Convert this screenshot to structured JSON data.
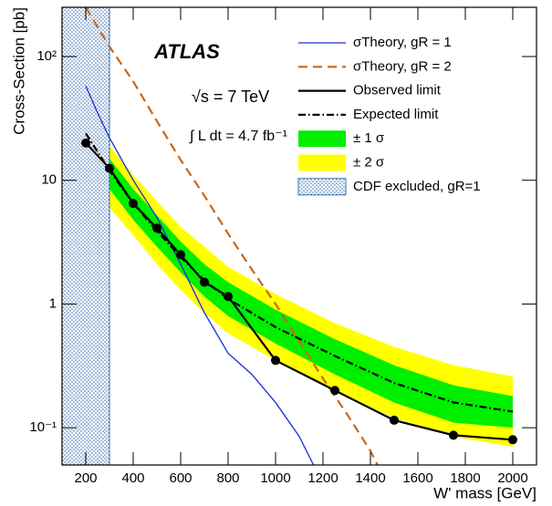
{
  "chart_data": {
    "type": "line",
    "title": "ATLAS",
    "annotations": [
      "√s = 7 TeV",
      "∫ L dt = 4.7 fb⁻¹"
    ],
    "xlabel": "W' mass [GeV]",
    "ylabel": "Cross-Section [pb]",
    "xlim": [
      100,
      2100
    ],
    "xticks": [
      200,
      400,
      600,
      800,
      1000,
      1200,
      1400,
      1600,
      1800,
      2000
    ],
    "ylog": true,
    "ylim": [
      0.05,
      250
    ],
    "yticks": [
      {
        "value": 0.1,
        "label": "10⁻¹"
      },
      {
        "value": 1,
        "label": "1"
      },
      {
        "value": 10,
        "label": "10"
      },
      {
        "value": 100,
        "label": "10²"
      }
    ],
    "series": [
      {
        "name": "σTheory, gR = 1",
        "kind": "line",
        "style": "solid",
        "color": "#1a2fd8",
        "x": [
          200,
          250,
          300,
          400,
          500,
          600,
          700,
          800,
          900,
          1000,
          1100,
          1160
        ],
        "values": [
          58,
          35,
          22,
          10,
          5,
          2.1,
          0.85,
          0.4,
          0.27,
          0.16,
          0.085,
          0.05
        ]
      },
      {
        "name": "σTheory, gR = 2",
        "kind": "line",
        "style": "dashed",
        "color": "#c8661e",
        "x": [
          200,
          300,
          400,
          500,
          600,
          700,
          800,
          900,
          1000,
          1100,
          1200,
          1300,
          1400,
          1430
        ],
        "values": [
          250,
          120,
          63,
          30,
          14.6,
          7.5,
          3.7,
          1.9,
          1,
          0.5,
          0.25,
          0.13,
          0.065,
          0.05
        ]
      },
      {
        "name": "Observed limit",
        "kind": "line",
        "style": "solid",
        "color": "#000000",
        "markers": true,
        "x": [
          200,
          300,
          400,
          500,
          600,
          700,
          800,
          1000,
          1250,
          1500,
          1750,
          2000
        ],
        "values": [
          20,
          12.5,
          6.5,
          4.1,
          2.5,
          1.5,
          1.15,
          0.35,
          0.2,
          0.115,
          0.087,
          0.08
        ]
      },
      {
        "name": "Expected limit",
        "kind": "line",
        "style": "dashdot",
        "color": "#000000",
        "x": [
          200,
          300,
          400,
          500,
          600,
          700,
          800,
          1000,
          1250,
          1500,
          1750,
          2000
        ],
        "values": [
          24,
          12,
          6.5,
          3.9,
          2.4,
          1.55,
          1.1,
          0.65,
          0.38,
          0.23,
          0.16,
          0.135
        ]
      },
      {
        "name": "± 1 σ",
        "kind": "band",
        "color": "#00ee00",
        "x": [
          200,
          300,
          400,
          500,
          600,
          700,
          800,
          1000,
          1250,
          1500,
          1750,
          2000
        ],
        "lower": [
          15,
          8.5,
          4.8,
          2.9,
          1.8,
          1.15,
          0.8,
          0.48,
          0.27,
          0.16,
          0.11,
          0.1
        ],
        "upper": [
          30,
          15,
          8.5,
          5.2,
          3.2,
          2.1,
          1.5,
          0.9,
          0.52,
          0.32,
          0.22,
          0.18
        ]
      },
      {
        "name": "± 2 σ",
        "kind": "band",
        "color": "#ffff00",
        "x": [
          200,
          300,
          400,
          500,
          600,
          700,
          800,
          1000,
          1250,
          1500,
          1750,
          2000
        ],
        "lower": [
          10,
          6,
          3.6,
          2.1,
          1.3,
          0.85,
          0.58,
          0.35,
          0.2,
          0.12,
          0.085,
          0.07
        ],
        "upper": [
          37,
          19,
          11,
          6.8,
          4.2,
          2.9,
          2,
          1.2,
          0.7,
          0.45,
          0.32,
          0.26
        ]
      }
    ],
    "excluded_region": {
      "name": "CDF excluded, gR=1",
      "x": [
        100,
        300
      ],
      "color": "#3b6fb0"
    }
  }
}
